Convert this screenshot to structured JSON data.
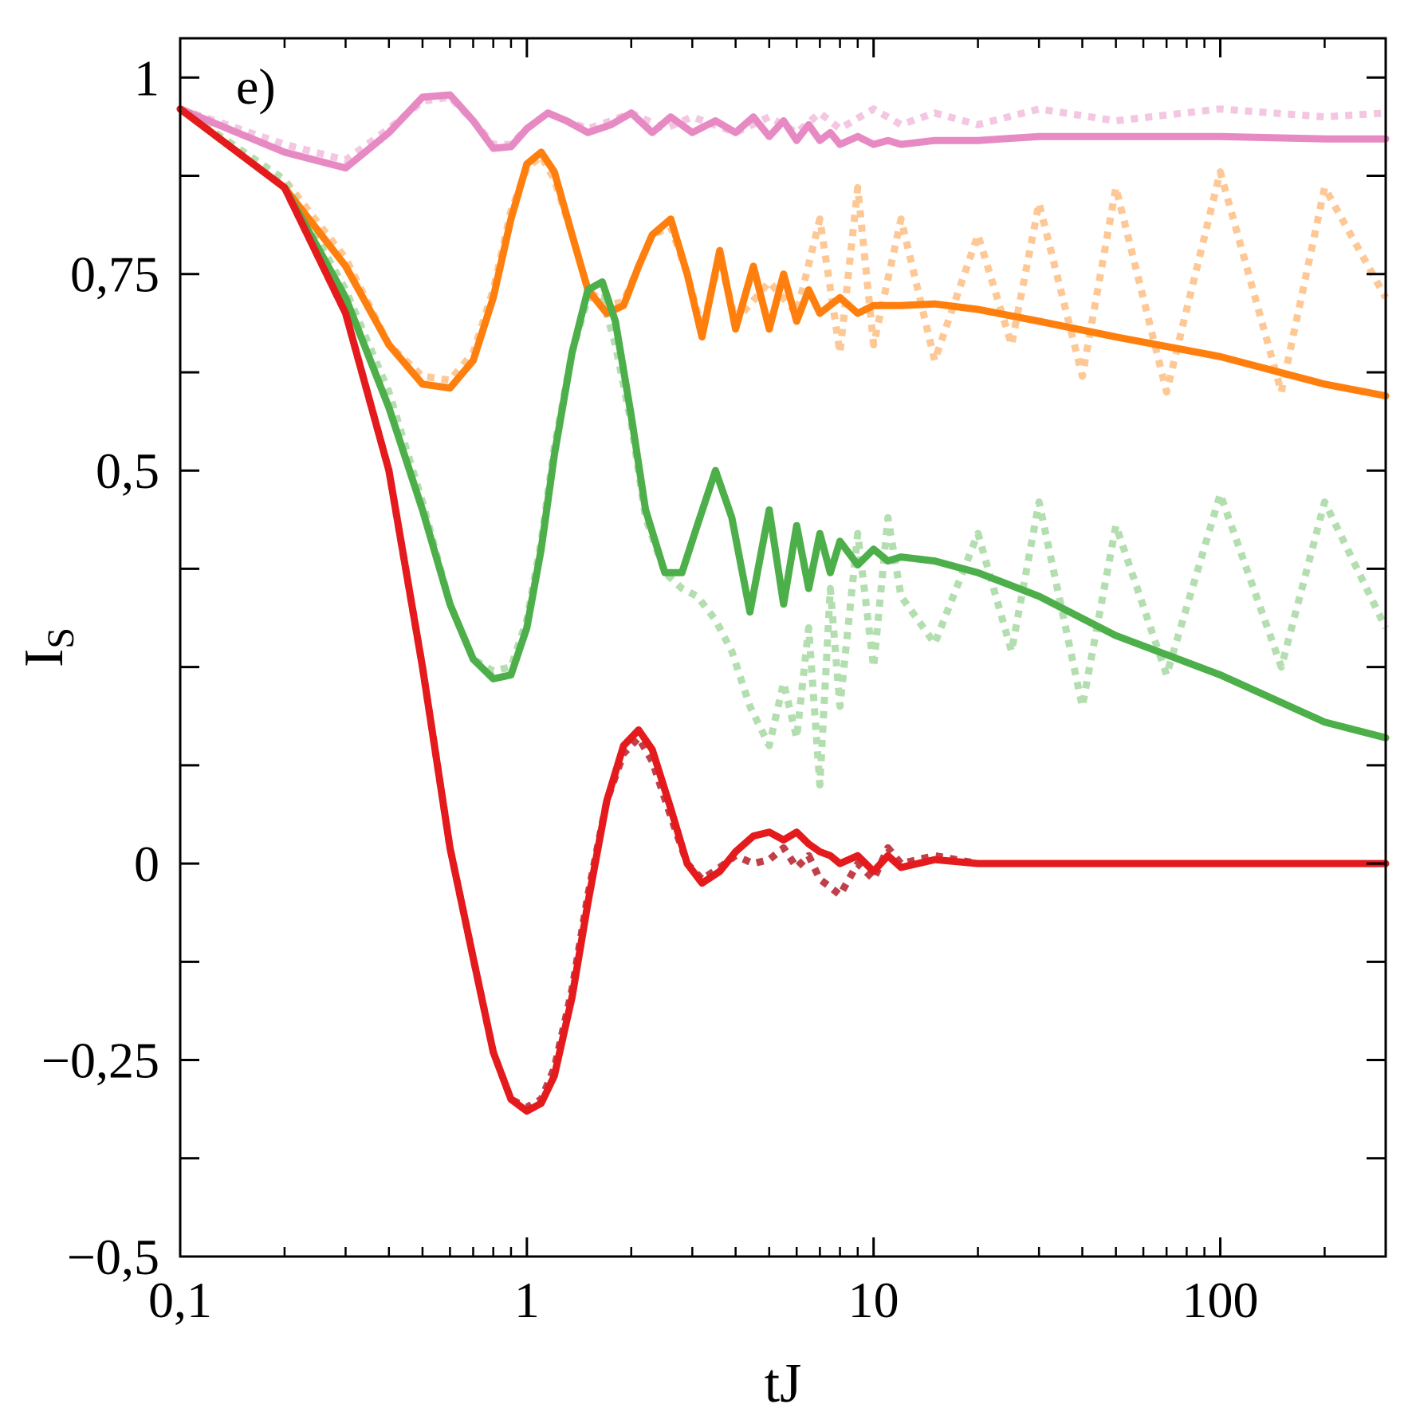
{
  "chart_data": {
    "type": "line",
    "panel_label": "e)",
    "xlabel": "tJ",
    "ylabel": "I",
    "ylabel_sub": "S",
    "x_scale": "log",
    "xlim": [
      0.1,
      300
    ],
    "ylim": [
      -0.5,
      1.05
    ],
    "x_ticks": [
      {
        "value": 0.1,
        "label": "0,1"
      },
      {
        "value": 1,
        "label": "1"
      },
      {
        "value": 10,
        "label": "10"
      },
      {
        "value": 100,
        "label": "100"
      }
    ],
    "y_ticks": [
      {
        "value": 1,
        "label": "1"
      },
      {
        "value": 0.75,
        "label": "0,75"
      },
      {
        "value": 0.5,
        "label": "0,5"
      },
      {
        "value": 0,
        "label": "0"
      },
      {
        "value": -0.25,
        "label": "−0,25"
      },
      {
        "value": -0.5,
        "label": "−0,5"
      }
    ],
    "y_minor_step": 0.125,
    "grid": false,
    "series": [
      {
        "style": "solid",
        "color": "#e78ac3",
        "x": [
          0.1,
          0.2,
          0.3,
          0.4,
          0.5,
          0.6,
          0.7,
          0.8,
          0.9,
          1.0,
          1.15,
          1.3,
          1.5,
          1.75,
          2.0,
          2.3,
          2.6,
          3.0,
          3.5,
          4.0,
          4.5,
          5.0,
          5.5,
          6.0,
          6.5,
          7.0,
          7.5,
          8.0,
          9.0,
          10,
          11,
          12,
          15,
          20,
          30,
          50,
          100,
          200,
          300
        ],
        "y": [
          0.96,
          0.905,
          0.885,
          0.93,
          0.975,
          0.978,
          0.945,
          0.91,
          0.912,
          0.935,
          0.955,
          0.945,
          0.93,
          0.94,
          0.955,
          0.93,
          0.95,
          0.93,
          0.945,
          0.93,
          0.95,
          0.925,
          0.945,
          0.92,
          0.94,
          0.92,
          0.93,
          0.915,
          0.925,
          0.915,
          0.92,
          0.915,
          0.92,
          0.92,
          0.925,
          0.925,
          0.925,
          0.922,
          0.922
        ]
      },
      {
        "style": "dotted",
        "color": "#f3c6e2",
        "x": [
          0.1,
          0.2,
          0.3,
          0.4,
          0.5,
          0.6,
          0.7,
          0.8,
          0.9,
          1.0,
          1.15,
          1.3,
          1.5,
          1.75,
          2.0,
          2.5,
          3.0,
          4.0,
          5.0,
          6.0,
          7.0,
          8.0,
          10,
          12,
          15,
          20,
          30,
          50,
          100,
          200,
          300
        ],
        "y": [
          0.96,
          0.915,
          0.895,
          0.935,
          0.97,
          0.975,
          0.945,
          0.915,
          0.915,
          0.935,
          0.955,
          0.945,
          0.935,
          0.945,
          0.955,
          0.935,
          0.95,
          0.93,
          0.95,
          0.93,
          0.955,
          0.935,
          0.96,
          0.94,
          0.955,
          0.94,
          0.96,
          0.945,
          0.96,
          0.95,
          0.955
        ]
      },
      {
        "style": "solid",
        "color": "#ff7f0e",
        "x": [
          0.1,
          0.2,
          0.3,
          0.4,
          0.5,
          0.6,
          0.7,
          0.8,
          0.9,
          1.0,
          1.1,
          1.2,
          1.35,
          1.5,
          1.7,
          1.9,
          2.1,
          2.3,
          2.6,
          2.9,
          3.2,
          3.6,
          4.0,
          4.5,
          5.0,
          5.5,
          6.0,
          6.5,
          7.0,
          8.0,
          9.0,
          10,
          12,
          15,
          20,
          30,
          50,
          100,
          200,
          300
        ],
        "y": [
          0.96,
          0.86,
          0.76,
          0.66,
          0.61,
          0.605,
          0.64,
          0.72,
          0.82,
          0.89,
          0.905,
          0.88,
          0.8,
          0.73,
          0.7,
          0.71,
          0.76,
          0.8,
          0.82,
          0.75,
          0.67,
          0.78,
          0.68,
          0.76,
          0.68,
          0.75,
          0.69,
          0.73,
          0.7,
          0.72,
          0.7,
          0.71,
          0.71,
          0.712,
          0.705,
          0.69,
          0.67,
          0.645,
          0.61,
          0.595
        ]
      },
      {
        "style": "dotted",
        "color": "#fdc896",
        "x": [
          0.1,
          0.2,
          0.3,
          0.4,
          0.5,
          0.6,
          0.7,
          0.8,
          0.9,
          1.0,
          1.1,
          1.2,
          1.35,
          1.5,
          1.7,
          1.9,
          2.1,
          2.3,
          2.6,
          2.9,
          3.2,
          3.6,
          4.0,
          5.0,
          6.0,
          7.0,
          8.0,
          9.0,
          10,
          12,
          15,
          20,
          25,
          30,
          40,
          50,
          70,
          100,
          150,
          200,
          300
        ],
        "y": [
          0.96,
          0.87,
          0.77,
          0.66,
          0.62,
          0.615,
          0.65,
          0.73,
          0.83,
          0.885,
          0.9,
          0.87,
          0.8,
          0.73,
          0.71,
          0.715,
          0.76,
          0.8,
          0.81,
          0.75,
          0.68,
          0.77,
          0.69,
          0.74,
          0.7,
          0.82,
          0.65,
          0.86,
          0.66,
          0.82,
          0.64,
          0.8,
          0.66,
          0.84,
          0.62,
          0.86,
          0.6,
          0.88,
          0.6,
          0.86,
          0.72
        ]
      },
      {
        "style": "solid",
        "color": "#4daf4a",
        "x": [
          0.1,
          0.2,
          0.3,
          0.4,
          0.5,
          0.6,
          0.7,
          0.8,
          0.9,
          1.0,
          1.1,
          1.2,
          1.35,
          1.5,
          1.65,
          1.8,
          2.0,
          2.2,
          2.5,
          2.8,
          3.1,
          3.5,
          3.9,
          4.4,
          5.0,
          5.5,
          6.0,
          6.5,
          7.0,
          7.5,
          8.0,
          9.0,
          10,
          11,
          12,
          15,
          20,
          30,
          50,
          100,
          200,
          300
        ],
        "y": [
          0.96,
          0.86,
          0.72,
          0.58,
          0.45,
          0.33,
          0.26,
          0.235,
          0.24,
          0.3,
          0.4,
          0.52,
          0.65,
          0.73,
          0.74,
          0.69,
          0.57,
          0.45,
          0.37,
          0.37,
          0.43,
          0.5,
          0.44,
          0.32,
          0.45,
          0.33,
          0.43,
          0.35,
          0.42,
          0.37,
          0.41,
          0.38,
          0.4,
          0.385,
          0.39,
          0.385,
          0.37,
          0.34,
          0.29,
          0.24,
          0.18,
          0.16
        ]
      },
      {
        "style": "dotted",
        "color": "#b3deaf",
        "x": [
          0.1,
          0.2,
          0.3,
          0.4,
          0.5,
          0.6,
          0.7,
          0.8,
          0.9,
          1.0,
          1.1,
          1.2,
          1.35,
          1.5,
          1.65,
          1.8,
          2.0,
          2.2,
          2.5,
          2.8,
          3.1,
          3.5,
          3.9,
          4.4,
          5.0,
          5.5,
          6.0,
          6.5,
          7.0,
          7.5,
          8.0,
          9.0,
          10,
          11,
          12,
          15,
          20,
          25,
          30,
          40,
          50,
          70,
          100,
          150,
          200,
          300
        ],
        "y": [
          0.96,
          0.87,
          0.73,
          0.6,
          0.46,
          0.33,
          0.26,
          0.245,
          0.25,
          0.31,
          0.41,
          0.53,
          0.65,
          0.72,
          0.72,
          0.66,
          0.56,
          0.44,
          0.37,
          0.35,
          0.34,
          0.31,
          0.27,
          0.2,
          0.15,
          0.23,
          0.16,
          0.3,
          0.1,
          0.35,
          0.2,
          0.42,
          0.25,
          0.44,
          0.34,
          0.28,
          0.42,
          0.27,
          0.46,
          0.2,
          0.43,
          0.24,
          0.47,
          0.25,
          0.46,
          0.3
        ]
      },
      {
        "style": "solid",
        "color": "#e41a1c",
        "x": [
          0.1,
          0.2,
          0.3,
          0.4,
          0.5,
          0.6,
          0.7,
          0.8,
          0.9,
          1.0,
          1.1,
          1.2,
          1.35,
          1.5,
          1.7,
          1.9,
          2.1,
          2.3,
          2.6,
          2.9,
          3.2,
          3.6,
          4.0,
          4.5,
          5.0,
          5.5,
          6.0,
          6.5,
          7.0,
          7.5,
          8.0,
          9.0,
          10,
          11,
          12,
          15,
          20,
          30,
          50,
          100,
          200,
          300
        ],
        "y": [
          0.96,
          0.86,
          0.7,
          0.5,
          0.25,
          0.02,
          -0.12,
          -0.24,
          -0.3,
          -0.315,
          -0.305,
          -0.27,
          -0.17,
          -0.05,
          0.08,
          0.15,
          0.17,
          0.145,
          0.07,
          0.0,
          -0.025,
          -0.01,
          0.015,
          0.035,
          0.04,
          0.03,
          0.04,
          0.025,
          0.015,
          0.01,
          0.0,
          0.01,
          -0.01,
          0.01,
          -0.005,
          0.005,
          0.0,
          0.0,
          0.0,
          0.0,
          0.0,
          0.0
        ]
      },
      {
        "style": "dotted",
        "color": "#c0404a",
        "x": [
          0.1,
          0.2,
          0.3,
          0.4,
          0.5,
          0.6,
          0.7,
          0.8,
          0.9,
          1.0,
          1.1,
          1.2,
          1.35,
          1.5,
          1.7,
          1.9,
          2.1,
          2.3,
          2.6,
          2.9,
          3.2,
          3.6,
          4.0,
          4.5,
          5.0,
          5.5,
          6.0,
          6.5,
          7.0,
          7.5,
          8.0,
          9.0,
          10,
          11,
          12,
          15,
          20
        ],
        "y": [
          0.96,
          0.86,
          0.7,
          0.5,
          0.25,
          0.02,
          -0.12,
          -0.24,
          -0.3,
          -0.31,
          -0.3,
          -0.26,
          -0.16,
          -0.04,
          0.08,
          0.14,
          0.16,
          0.13,
          0.06,
          0.0,
          -0.02,
          -0.005,
          0.01,
          0.0,
          0.005,
          0.02,
          -0.005,
          0.01,
          -0.02,
          -0.03,
          -0.04,
          0.0,
          -0.02,
          0.02,
          0.0,
          0.01,
          0.0
        ]
      }
    ]
  }
}
